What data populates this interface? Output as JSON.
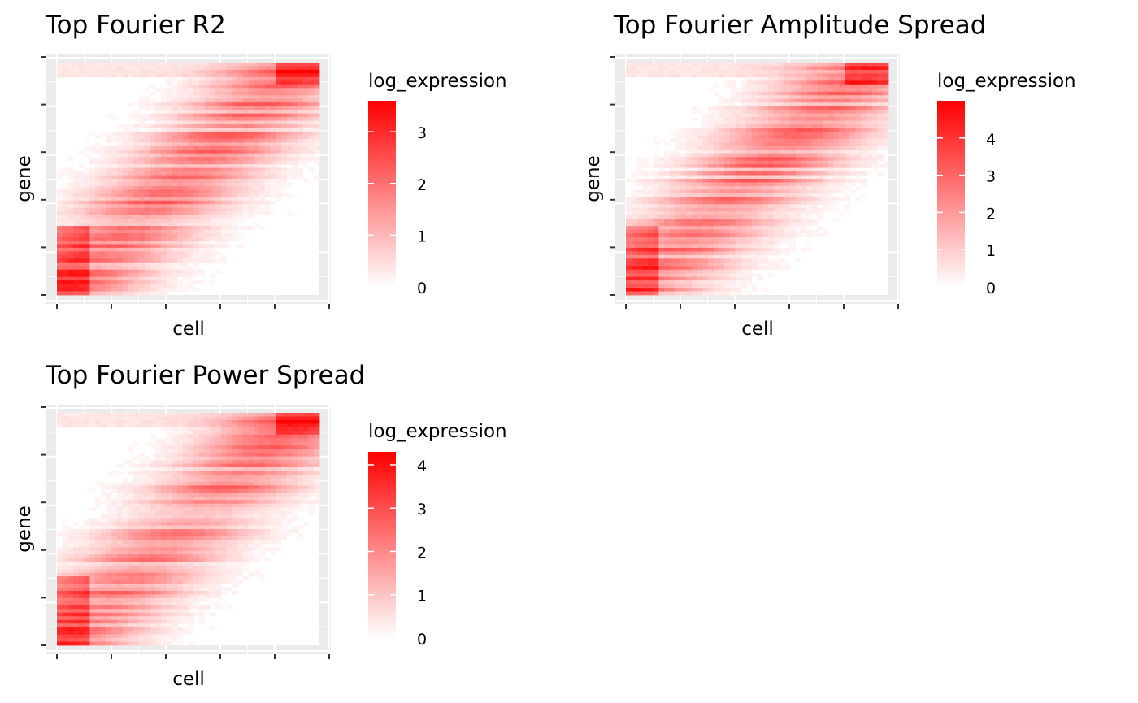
{
  "figure": {
    "background": "#ffffff",
    "panel_background": "#ebebeb",
    "grid_color": "#ffffff",
    "low_color": "#ffffff",
    "high_color": "#ff0000"
  },
  "chart_data": [
    {
      "type": "heatmap",
      "title": "Top Fourier R2",
      "xlabel": "cell",
      "ylabel": "gene",
      "x_tick_labels": [],
      "y_tick_labels": [],
      "x_tick_count": 6,
      "y_tick_count": 6,
      "grid": true,
      "legend": {
        "title": "log_expression",
        "placement": "right",
        "range": [
          0,
          3.6
        ],
        "ticks": [
          0,
          1,
          2,
          3
        ],
        "tick_labels": [
          "0",
          "1",
          "2",
          "3"
        ]
      },
      "pattern": "expression band shifts diagonally: high in early cells for bottom genes, high in late cells for top genes"
    },
    {
      "type": "heatmap",
      "title": "Top Fourier Amplitude Spread",
      "xlabel": "cell",
      "ylabel": "gene",
      "x_tick_labels": [],
      "y_tick_labels": [],
      "x_tick_count": 6,
      "y_tick_count": 6,
      "grid": true,
      "legend": {
        "title": "log_expression",
        "placement": "right",
        "range": [
          0,
          5
        ],
        "ticks": [
          0,
          1,
          2,
          3,
          4
        ],
        "tick_labels": [
          "0",
          "1",
          "2",
          "3",
          "4"
        ]
      },
      "pattern": "expression band shifts diagonally: high in early cells for bottom genes, high in late cells for top genes"
    },
    {
      "type": "heatmap",
      "title": "Top Fourier Power Spread",
      "xlabel": "cell",
      "ylabel": "gene",
      "x_tick_labels": [],
      "y_tick_labels": [],
      "x_tick_count": 6,
      "y_tick_count": 6,
      "grid": true,
      "legend": {
        "title": "log_expression",
        "placement": "right",
        "range": [
          0,
          4.3
        ],
        "ticks": [
          0,
          1,
          2,
          3,
          4
        ],
        "tick_labels": [
          "0",
          "1",
          "2",
          "3",
          "4"
        ]
      },
      "pattern": "expression band shifts diagonally: high in early cells for bottom genes, high in late cells for top genes"
    }
  ]
}
